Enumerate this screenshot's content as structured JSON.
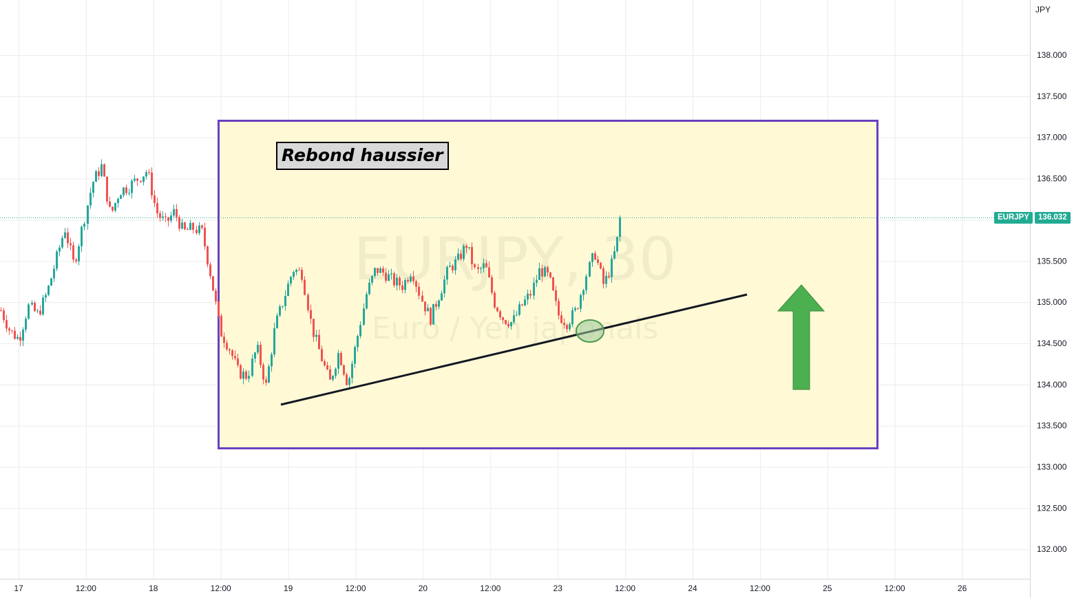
{
  "chart": {
    "currency": "JPY",
    "symbol": "EURJPY",
    "last_price": "136.032",
    "watermark_title": "EURJPY, 30",
    "watermark_subtitle": "Euro / Yen japonais",
    "annotation_text": "Rebond haussier",
    "colors": {
      "up": "#26a69a",
      "down": "#ef5350",
      "highlight_fill": "#fff9d6",
      "highlight_border": "#6a3fbf",
      "arrow": "#4caf50",
      "price_tag": "#22ab94",
      "trendline": "#131722"
    }
  },
  "chart_data": {
    "type": "candlestick",
    "price_axis_ticks": [
      "138.000",
      "137.500",
      "137.000",
      "136.500",
      "136.000",
      "135.500",
      "135.000",
      "134.500",
      "134.000",
      "133.500",
      "133.000",
      "132.500",
      "132.000"
    ],
    "time_axis_ticks": [
      "17",
      "12:00",
      "18",
      "12:00",
      "19",
      "12:00",
      "20",
      "12:00",
      "23",
      "12:00",
      "24",
      "12:00",
      "25",
      "12:00",
      "26"
    ],
    "ylim": [
      131.65,
      138.63
    ],
    "grid": true,
    "price_path": [
      {
        "t": 0,
        "p": 134.9
      },
      {
        "t": 1,
        "p": 134.65
      },
      {
        "t": 2,
        "p": 134.55
      },
      {
        "t": 3,
        "p": 134.95
      },
      {
        "t": 4,
        "p": 134.85
      },
      {
        "t": 5,
        "p": 135.1
      },
      {
        "t": 6,
        "p": 135.5
      },
      {
        "t": 7,
        "p": 135.9
      },
      {
        "t": 8,
        "p": 135.45
      },
      {
        "t": 9,
        "p": 135.95
      },
      {
        "t": 10,
        "p": 136.45
      },
      {
        "t": 11,
        "p": 136.65
      },
      {
        "t": 12,
        "p": 136.05
      },
      {
        "t": 13,
        "p": 136.35
      },
      {
        "t": 14,
        "p": 136.4
      },
      {
        "t": 15,
        "p": 136.5
      },
      {
        "t": 16,
        "p": 136.6
      },
      {
        "t": 17,
        "p": 136.1
      },
      {
        "t": 18,
        "p": 135.95
      },
      {
        "t": 19,
        "p": 136.1
      },
      {
        "t": 20,
        "p": 135.85
      },
      {
        "t": 21,
        "p": 135.9
      },
      {
        "t": 22,
        "p": 135.85
      },
      {
        "t": 23,
        "p": 135.3
      },
      {
        "t": 24,
        "p": 134.65
      },
      {
        "t": 25,
        "p": 134.45
      },
      {
        "t": 26,
        "p": 134.15
      },
      {
        "t": 27,
        "p": 134.1
      },
      {
        "t": 28,
        "p": 134.45
      },
      {
        "t": 29,
        "p": 133.98
      },
      {
        "t": 30,
        "p": 134.7
      },
      {
        "t": 31,
        "p": 135.05
      },
      {
        "t": 32,
        "p": 135.4
      },
      {
        "t": 33,
        "p": 135.35
      },
      {
        "t": 34,
        "p": 134.7
      },
      {
        "t": 35,
        "p": 134.35
      },
      {
        "t": 36,
        "p": 134.02
      },
      {
        "t": 37,
        "p": 134.4
      },
      {
        "t": 38,
        "p": 134.0
      },
      {
        "t": 39,
        "p": 134.55
      },
      {
        "t": 40,
        "p": 135.1
      },
      {
        "t": 41,
        "p": 135.4
      },
      {
        "t": 42,
        "p": 135.35
      },
      {
        "t": 43,
        "p": 135.25
      },
      {
        "t": 44,
        "p": 135.2
      },
      {
        "t": 45,
        "p": 135.4
      },
      {
        "t": 46,
        "p": 135.05
      },
      {
        "t": 47,
        "p": 134.8
      },
      {
        "t": 48,
        "p": 135.1
      },
      {
        "t": 49,
        "p": 135.4
      },
      {
        "t": 50,
        "p": 135.5
      },
      {
        "t": 51,
        "p": 135.7
      },
      {
        "t": 52,
        "p": 135.35
      },
      {
        "t": 53,
        "p": 135.45
      },
      {
        "t": 54,
        "p": 135.0
      },
      {
        "t": 55,
        "p": 134.8
      },
      {
        "t": 56,
        "p": 134.75
      },
      {
        "t": 57,
        "p": 134.95
      },
      {
        "t": 58,
        "p": 135.1
      },
      {
        "t": 59,
        "p": 135.4
      },
      {
        "t": 60,
        "p": 135.3
      },
      {
        "t": 61,
        "p": 134.85
      },
      {
        "t": 62,
        "p": 134.75
      },
      {
        "t": 63,
        "p": 134.9
      },
      {
        "t": 64,
        "p": 135.3
      },
      {
        "t": 65,
        "p": 135.6
      },
      {
        "t": 66,
        "p": 135.2
      },
      {
        "t": 67,
        "p": 135.5
      },
      {
        "t": 68,
        "p": 136.03
      }
    ],
    "trendline": {
      "from_date": "19",
      "from_price": 133.77,
      "to_date": "24 12:00",
      "to_price": 135.09
    }
  }
}
